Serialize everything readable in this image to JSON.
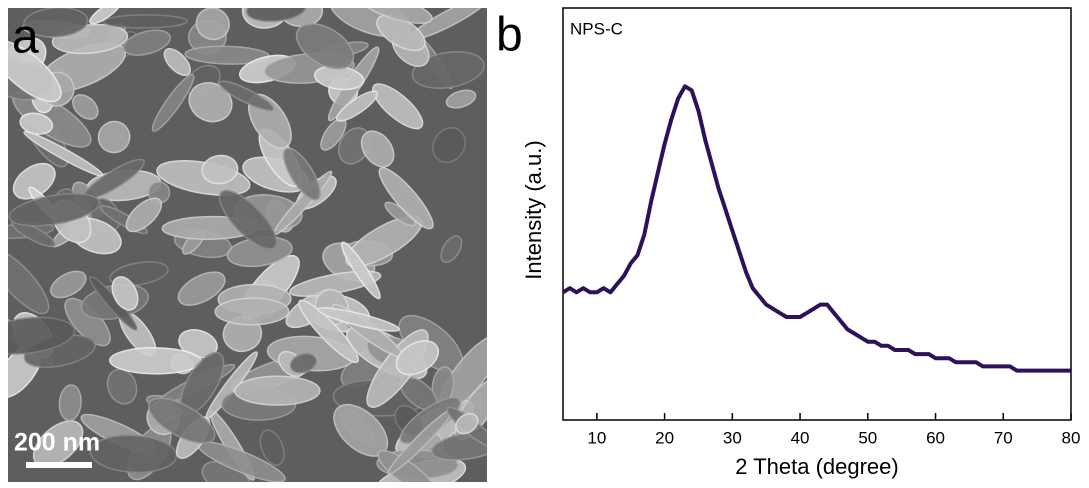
{
  "image_panel": {
    "label": "a",
    "scale_bar": "200 nm"
  },
  "chart_data": {
    "type": "line",
    "panel_label": "b",
    "annotation": "NPS-C",
    "xlabel": "2 Theta (degree)",
    "ylabel": "Intensity (a.u.)",
    "color": "#2d1159",
    "x": [
      5,
      6,
      7,
      8,
      9,
      10,
      11,
      12,
      13,
      14,
      15,
      16,
      17,
      18,
      19,
      20,
      21,
      22,
      23,
      24,
      25,
      26,
      27,
      28,
      29,
      30,
      31,
      32,
      33,
      34,
      35,
      36,
      37,
      38,
      39,
      40,
      41,
      42,
      43,
      44,
      45,
      46,
      47,
      48,
      49,
      50,
      51,
      52,
      53,
      54,
      55,
      56,
      57,
      58,
      59,
      60,
      61,
      62,
      63,
      64,
      65,
      66,
      67,
      68,
      69,
      70,
      71,
      72,
      73,
      74,
      75,
      76,
      77,
      78,
      79,
      80
    ],
    "values": [
      31,
      32,
      31,
      32,
      31,
      31,
      32,
      31,
      33,
      35,
      38,
      40,
      45,
      53,
      60,
      67,
      73,
      78,
      81,
      80,
      75,
      68,
      62,
      56,
      51,
      46,
      41,
      36,
      32,
      30,
      28,
      27,
      26,
      25,
      25,
      25,
      26,
      27,
      28,
      28,
      26,
      24,
      22,
      21,
      20,
      19,
      19,
      18,
      18,
      17,
      17,
      17,
      16,
      16,
      16,
      15,
      15,
      15,
      14,
      14,
      14,
      14,
      13,
      13,
      13,
      13,
      13,
      12,
      12,
      12,
      12,
      12,
      12,
      12,
      12,
      12
    ],
    "xlim": [
      5,
      80
    ],
    "xticks": [
      10,
      20,
      30,
      40,
      50,
      60,
      70,
      80
    ],
    "ylim": [
      0,
      100
    ]
  }
}
